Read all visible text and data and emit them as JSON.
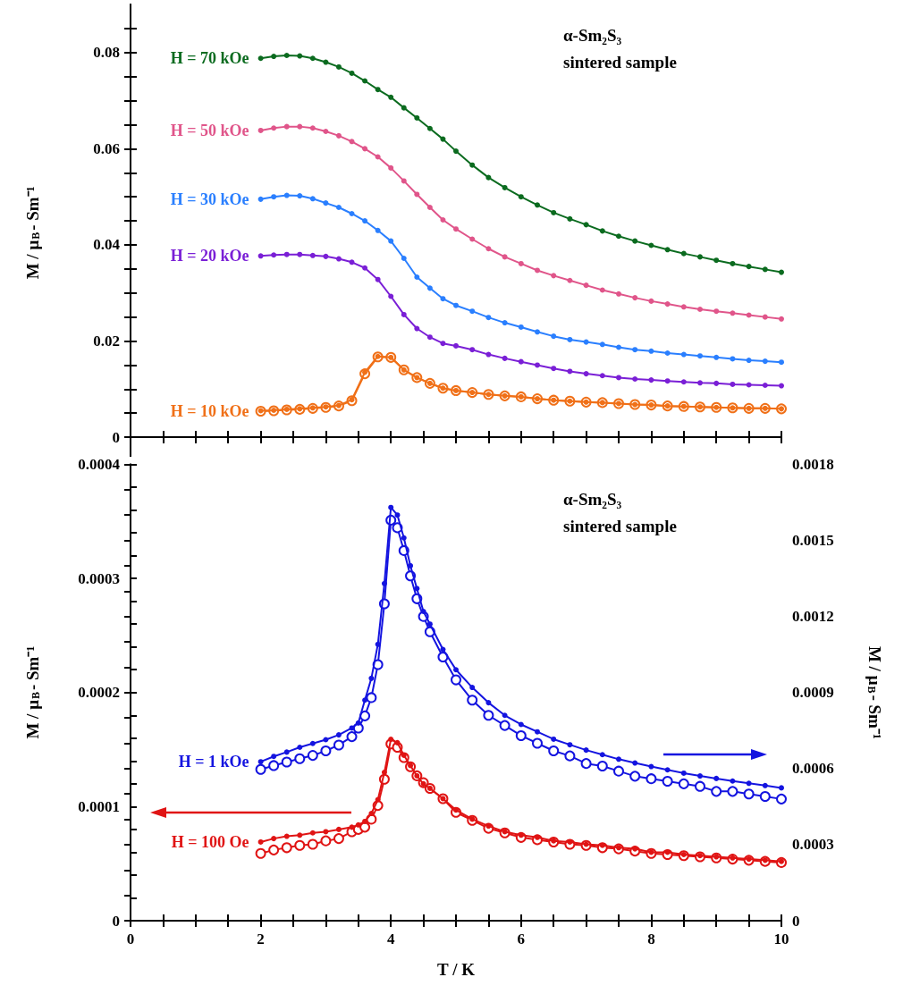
{
  "chart_data": [
    {
      "type": "line",
      "ylabel": "M / μ$_{B}$- Sm⁻¹",
      "annotations": [
        "α-Sm₂S₃",
        "sintered sample"
      ],
      "tick_labels": "y",
      "legend": false,
      "line_style": "solid",
      "xlim": [
        0,
        10
      ],
      "xticks": [
        0,
        {
          "value": 0.5,
          "label": null
        },
        {
          "value": 1,
          "label": null
        },
        {
          "value": 1.5,
          "label": null
        },
        2,
        {
          "value": 2.5,
          "label": null
        },
        {
          "value": 3,
          "label": null
        },
        {
          "value": 3.5,
          "label": null
        },
        4,
        {
          "value": 4.5,
          "label": null
        },
        {
          "value": 5,
          "label": null
        },
        {
          "value": 5.5,
          "label": null
        },
        6,
        {
          "value": 6.5,
          "label": null
        },
        {
          "value": 7,
          "label": null
        },
        {
          "value": 7.5,
          "label": null
        },
        8,
        {
          "value": 8.5,
          "label": null
        },
        {
          "value": 9,
          "label": null
        },
        {
          "value": 9.5,
          "label": null
        },
        10
      ],
      "ylim": [
        -0.005,
        0.09
      ],
      "yticks": [
        0,
        {
          "value": 0.005,
          "label": null
        },
        {
          "value": 0.01,
          "label": null
        },
        {
          "value": 0.015,
          "label": null
        },
        0.02,
        {
          "value": 0.025,
          "label": null
        },
        {
          "value": 0.03,
          "label": null
        },
        {
          "value": 0.035,
          "label": null
        },
        0.04,
        {
          "value": 0.045,
          "label": null
        },
        {
          "value": 0.05,
          "label": null
        },
        {
          "value": 0.055,
          "label": null
        },
        0.06,
        {
          "value": 0.065,
          "label": null
        },
        {
          "value": 0.07,
          "label": null
        },
        {
          "value": 0.075,
          "label": null
        },
        0.08,
        {
          "value": 0.085,
          "label": null
        }
      ],
      "x": [
        2,
        2.2,
        2.4,
        2.6,
        2.8,
        3,
        3.2,
        3.4,
        3.6,
        3.8,
        4,
        4.2,
        4.4,
        4.6,
        4.8,
        5,
        5.25,
        5.5,
        5.75,
        6,
        6.25,
        6.5,
        6.75,
        7,
        7.25,
        7.5,
        7.75,
        8,
        8.25,
        8.5,
        8.75,
        9,
        9.25,
        9.5,
        9.75,
        10
      ],
      "series": [
        {
          "name": "H = 70 kOe",
          "color": "#0b6b1f",
          "marker": "circle",
          "values": [
            0.0788,
            0.0792,
            0.0794,
            0.0793,
            0.0788,
            0.078,
            0.077,
            0.0757,
            0.0741,
            0.0723,
            0.0707,
            0.0685,
            0.0664,
            0.0642,
            0.062,
            0.0595,
            0.0566,
            0.054,
            0.0519,
            0.05,
            0.0483,
            0.0467,
            0.0454,
            0.0442,
            0.0429,
            0.0418,
            0.0408,
            0.0399,
            0.039,
            0.0382,
            0.0375,
            0.0368,
            0.0361,
            0.0355,
            0.0349,
            0.0343
          ]
        },
        {
          "name": "H = 50 kOe",
          "color": "#e0558a",
          "marker": "circle",
          "values": [
            0.0638,
            0.0643,
            0.0646,
            0.0646,
            0.0643,
            0.0636,
            0.0627,
            0.0615,
            0.06,
            0.0583,
            0.056,
            0.0533,
            0.0505,
            0.0478,
            0.0452,
            0.0433,
            0.0412,
            0.0392,
            0.0375,
            0.0361,
            0.0347,
            0.0336,
            0.0326,
            0.0316,
            0.0306,
            0.0298,
            0.029,
            0.0283,
            0.0277,
            0.0271,
            0.0266,
            0.0262,
            0.0258,
            0.0254,
            0.025,
            0.0246
          ]
        },
        {
          "name": "H = 30 kOe",
          "color": "#2a7fff",
          "marker": "circle",
          "values": [
            0.0495,
            0.05,
            0.0503,
            0.0502,
            0.0496,
            0.0487,
            0.0478,
            0.0465,
            0.045,
            0.043,
            0.0408,
            0.0372,
            0.0333,
            0.031,
            0.0288,
            0.0274,
            0.0262,
            0.0249,
            0.0238,
            0.0229,
            0.0219,
            0.021,
            0.0203,
            0.0198,
            0.0193,
            0.0187,
            0.0182,
            0.0179,
            0.0175,
            0.0172,
            0.0169,
            0.0166,
            0.0163,
            0.016,
            0.0158,
            0.0156
          ]
        },
        {
          "name": "H = 20 kOe",
          "color": "#7a1fd6",
          "marker": "circle",
          "values": [
            0.0377,
            0.0379,
            0.038,
            0.038,
            0.0378,
            0.0376,
            0.0371,
            0.0364,
            0.0352,
            0.0328,
            0.0293,
            0.0255,
            0.0226,
            0.0208,
            0.0195,
            0.019,
            0.0182,
            0.0172,
            0.0164,
            0.0157,
            0.015,
            0.0143,
            0.0137,
            0.0132,
            0.0128,
            0.0124,
            0.0121,
            0.0119,
            0.0117,
            0.0115,
            0.0113,
            0.0112,
            0.011,
            0.0109,
            0.0108,
            0.0107
          ]
        },
        {
          "name": "H = 10 kOe",
          "color": "#f07018",
          "marker": "circle",
          "values": [
            0.0055,
            0.0056,
            0.0058,
            0.0059,
            0.0061,
            0.0063,
            0.0066,
            0.0078,
            0.0135,
            0.0168,
            0.0166,
            0.014,
            0.0124,
            0.0112,
            0.0102,
            0.0097,
            0.0093,
            0.0089,
            0.0086,
            0.0084,
            0.008,
            0.0077,
            0.0075,
            0.0073,
            0.0072,
            0.007,
            0.0068,
            0.0067,
            0.0065,
            0.0064,
            0.0063,
            0.0062,
            0.0061,
            0.006,
            0.006,
            0.0059
          ]
        },
        {
          "color": "#f07018",
          "marker": "open_circle",
          "values": [
            0.0054,
            0.0055,
            0.0057,
            0.0058,
            0.006,
            0.0062,
            0.0065,
            0.0076,
            0.0132,
            0.0167,
            0.0166,
            0.014,
            0.0124,
            0.0112,
            0.0102,
            0.0097,
            0.0093,
            0.0089,
            0.0086,
            0.0084,
            0.008,
            0.0077,
            0.0075,
            0.0073,
            0.0072,
            0.007,
            0.0068,
            0.0067,
            0.0065,
            0.0064,
            0.0063,
            0.0062,
            0.0061,
            0.006,
            0.006,
            0.0059
          ]
        }
      ]
    },
    {
      "type": "line",
      "xlabel": "T / K",
      "ylabel": "M / μ$_{B}$- Sm⁻¹",
      "y2label": "M / μ$_{B}$- Sm⁻¹",
      "annotations": [
        "α-Sm₂S₃",
        "sintered sample"
      ],
      "legend": false,
      "line_style": "solid",
      "xlim": [
        0,
        10
      ],
      "xticks": [
        0,
        {
          "value": 0.5,
          "label": null
        },
        {
          "value": 1,
          "label": null
        },
        {
          "value": 1.5,
          "label": null
        },
        2,
        {
          "value": 2.5,
          "label": null
        },
        {
          "value": 3,
          "label": null
        },
        {
          "value": 3.5,
          "label": null
        },
        4,
        {
          "value": 4.5,
          "label": null
        },
        {
          "value": 5,
          "label": null
        },
        {
          "value": 5.5,
          "label": null
        },
        6,
        {
          "value": 6.5,
          "label": null
        },
        {
          "value": 7,
          "label": null
        },
        {
          "value": 7.5,
          "label": null
        },
        8,
        {
          "value": 8.5,
          "label": null
        },
        {
          "value": 9,
          "label": null
        },
        {
          "value": 9.5,
          "label": null
        },
        10
      ],
      "ylim": [
        0,
        0.0004
      ],
      "yticks": [
        0,
        {
          "value": 2e-05,
          "label": null
        },
        {
          "value": 4e-05,
          "label": null
        },
        {
          "value": 6e-05,
          "label": null
        },
        {
          "value": 8e-05,
          "label": null
        },
        0.0001,
        {
          "value": 0.00012,
          "label": null
        },
        {
          "value": 0.00014,
          "label": null
        },
        {
          "value": 0.00016,
          "label": null
        },
        {
          "value": 0.00018,
          "label": null
        },
        0.0002,
        {
          "value": 0.00022,
          "label": null
        },
        {
          "value": 0.00024,
          "label": null
        },
        {
          "value": 0.00026,
          "label": null
        },
        {
          "value": 0.00028,
          "label": null
        },
        0.0003,
        {
          "value": 0.00032,
          "label": null
        },
        {
          "value": 0.00034,
          "label": null
        },
        {
          "value": 0.00036,
          "label": null
        },
        {
          "value": 0.00038,
          "label": null
        },
        0.0004
      ],
      "y2lim": [
        0,
        0.0018
      ],
      "y2ticks": [
        0,
        {
          "value": 0.0001,
          "label": null
        },
        {
          "value": 0.0002,
          "label": null
        },
        0.0003,
        {
          "value": 0.0004,
          "label": null
        },
        {
          "value": 0.0005,
          "label": null
        },
        0.0006,
        {
          "value": 0.0007,
          "label": null
        },
        {
          "value": 0.0008,
          "label": null
        },
        0.0009,
        {
          "value": 0.001,
          "label": null
        },
        {
          "value": 0.0011,
          "label": null
        },
        0.0012,
        {
          "value": 0.0013,
          "label": null
        },
        {
          "value": 0.0014,
          "label": null
        },
        0.0015,
        {
          "value": 0.0016,
          "label": null
        },
        {
          "value": 0.0017,
          "label": null
        },
        0.0018
      ],
      "x": [
        2,
        2.2,
        2.4,
        2.6,
        2.8,
        3,
        3.2,
        3.4,
        3.5,
        3.6,
        3.7,
        3.8,
        3.9,
        4,
        4.1,
        4.2,
        4.3,
        4.4,
        4.5,
        4.6,
        4.8,
        5,
        5.25,
        5.5,
        5.75,
        6,
        6.25,
        6.5,
        6.75,
        7,
        7.25,
        7.5,
        7.75,
        8,
        8.25,
        8.5,
        8.75,
        9,
        9.25,
        9.5,
        9.75,
        10
      ],
      "series": [
        {
          "name": "H = 1 kOe",
          "color": "#1414e0",
          "marker": "circle",
          "axis": "y2",
          "values": [
            0.000627,
            0.000648,
            0.000665,
            0.000684,
            0.000699,
            0.000714,
            0.000733,
            0.00076,
            0.00078,
            0.00087,
            0.000956,
            0.00109,
            0.00133,
            0.00163,
            0.0016,
            0.00151,
            0.0014,
            0.00131,
            0.00122,
            0.00117,
            0.00107,
            0.00099,
            0.00092,
            0.00086,
            0.00081,
            0.000774,
            0.000745,
            0.000716,
            0.000694,
            0.000673,
            0.000655,
            0.000637,
            0.000622,
            0.000608,
            0.000595,
            0.000582,
            0.000571,
            0.000561,
            0.000551,
            0.000542,
            0.000533,
            0.000524
          ]
        },
        {
          "color": "#1414e0",
          "marker": "open_circle",
          "axis": "y2",
          "values": [
            0.000597,
            0.000612,
            0.000626,
            0.000639,
            0.000652,
            0.00067,
            0.000693,
            0.000726,
            0.00076,
            0.000808,
            0.00088,
            0.00101,
            0.00125,
            0.00158,
            0.00155,
            0.00146,
            0.00136,
            0.00127,
            0.0012,
            0.00114,
            0.00104,
            0.00095,
            0.00087,
            0.00081,
            0.00077,
            0.00073,
            0.0007,
            0.00067,
            0.00065,
            0.00062,
            0.00061,
            0.00059,
            0.00057,
            0.00056,
            0.00055,
            0.00054,
            0.00053,
            0.00051,
            0.00051,
            0.0005,
            0.00049,
            0.00048
          ]
        },
        {
          "name": "H = 100 Oe",
          "color": "#e01414",
          "marker": "circle",
          "values": [
            6.9e-05,
            7.2e-05,
            7.4e-05,
            7.5e-05,
            7.7e-05,
            7.8e-05,
            8e-05,
            8.2e-05,
            8.4e-05,
            8.7e-05,
            9.4e-05,
            0.000106,
            0.00013,
            0.000159,
            0.000156,
            0.000145,
            0.000136,
            0.000127,
            0.00012,
            0.000116,
            0.000107,
            9.7e-05,
            8.9e-05,
            8.3e-05,
            7.8e-05,
            7.5e-05,
            7.3e-05,
            7e-05,
            6.9e-05,
            6.7e-05,
            6.6e-05,
            6.4e-05,
            6.3e-05,
            6e-05,
            6e-05,
            5.8e-05,
            5.7e-05,
            5.6e-05,
            5.5e-05,
            5.4e-05,
            5.3e-05,
            5.2e-05
          ]
        },
        {
          "color": "#e01414",
          "marker": "open_circle",
          "values": [
            5.9e-05,
            6.2e-05,
            6.4e-05,
            6.6e-05,
            6.7e-05,
            7e-05,
            7.2e-05,
            7.8e-05,
            8e-05,
            8.2e-05,
            8.9e-05,
            0.000101,
            0.000124,
            0.000155,
            0.000152,
            0.000143,
            0.000135,
            0.000127,
            0.000121,
            0.000116,
            0.000107,
            9.5e-05,
            8.8e-05,
            8.1e-05,
            7.7e-05,
            7.3e-05,
            7.1e-05,
            6.9e-05,
            6.7e-05,
            6.6e-05,
            6.4e-05,
            6.3e-05,
            6.1e-05,
            5.9e-05,
            5.8e-05,
            5.7e-05,
            5.6e-05,
            5.5e-05,
            5.4e-05,
            5.3e-05,
            5.2e-05,
            5.1e-05
          ]
        }
      ]
    }
  ]
}
